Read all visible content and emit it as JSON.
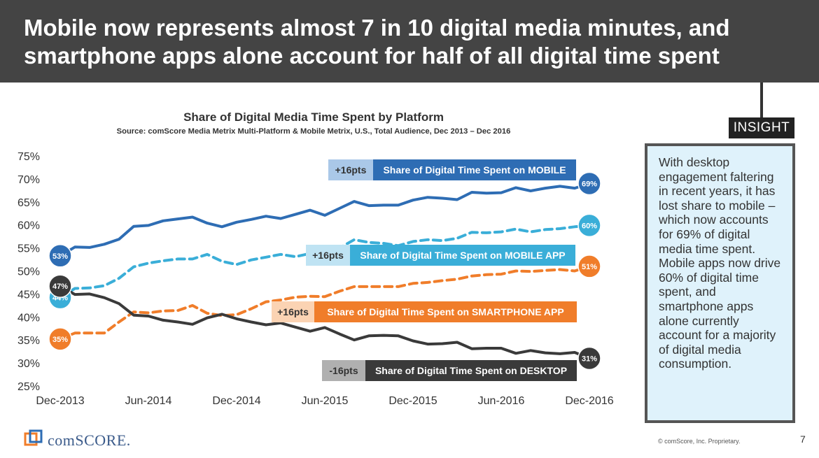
{
  "slide": {
    "title": "Mobile now represents almost 7 in 10 digital media minutes, and smartphone apps alone account for half of all digital time spent",
    "insight_label": "INSIGHT",
    "insight_text": "With desktop engagement faltering in recent years, it has lost share to mobile – which now accounts for 69% of digital media time spent. Mobile apps now drive 60% of digital time spent, and smartphone apps alone currently account for a majority of digital media consumption.",
    "logo_text": "comSCORE.",
    "copyright": "© comScore, Inc. Proprietary.",
    "page_number": "7"
  },
  "chart_data": {
    "type": "line",
    "title": "Share of Digital Media Time Spent by Platform",
    "subtitle": "Source: comScore Media Metrix Multi-Platform & Mobile Metrix, U.S., Total Audience, Dec 2013 – Dec 2016",
    "ylim": [
      25,
      75
    ],
    "y_ticks": [
      "75%",
      "70%",
      "65%",
      "60%",
      "55%",
      "50%",
      "45%",
      "40%",
      "35%",
      "30%",
      "25%"
    ],
    "x_ticks": [
      "Dec-2013",
      "Jun-2014",
      "Dec-2014",
      "Jun-2015",
      "Dec-2015",
      "Jun-2016",
      "Dec-2016"
    ],
    "grid": false,
    "series": [
      {
        "name": "Share of Digital Time Spent on MOBILE",
        "change": "+16pts",
        "color": "#2e6db4",
        "change_color": "#aac8e8",
        "dashed": false,
        "start_label": "53%",
        "end_label": "69%",
        "values": [
          53.3,
          55.2,
          55.1,
          55.8,
          56.9,
          59.7,
          59.9,
          60.9,
          61.3,
          61.7,
          60.4,
          59.6,
          60.6,
          61.2,
          61.9,
          61.4,
          62.3,
          63.2,
          62.1,
          63.6,
          65.1,
          64.2,
          64.3,
          64.3,
          65.4,
          66.0,
          65.8,
          65.5,
          67.1,
          66.9,
          67.0,
          68.1,
          67.4,
          68.0,
          68.4,
          68.0,
          69.0
        ]
      },
      {
        "name": "Share of Digital Time Spent on MOBILE APP",
        "change": "+16pts",
        "color": "#3aaed8",
        "change_color": "#bfe3f3",
        "dashed": true,
        "start_label": "44%",
        "end_label": "60%",
        "values": [
          44.2,
          46.2,
          46.3,
          46.8,
          48.4,
          50.9,
          51.7,
          52.2,
          52.6,
          52.6,
          53.6,
          52.1,
          51.4,
          52.4,
          53.0,
          53.6,
          53.1,
          53.8,
          54.1,
          55.0,
          56.8,
          56.2,
          56.0,
          55.5,
          56.4,
          56.8,
          56.6,
          57.1,
          58.4,
          58.3,
          58.5,
          59.1,
          58.5,
          59.0,
          59.2,
          59.6,
          59.9
        ]
      },
      {
        "name": "Share of Digital Time Spent on SMARTPHONE APP",
        "change": "+16pts",
        "color": "#f07d2a",
        "change_color": "#fbd3b3",
        "dashed": true,
        "start_label": "35%",
        "end_label": "51%",
        "values": [
          35.2,
          36.5,
          36.5,
          36.5,
          38.9,
          41.1,
          40.9,
          41.3,
          41.4,
          42.5,
          40.8,
          40.3,
          40.5,
          41.8,
          43.3,
          43.7,
          44.3,
          44.5,
          44.4,
          45.6,
          46.6,
          46.6,
          46.6,
          46.6,
          47.3,
          47.5,
          47.9,
          48.2,
          48.9,
          49.2,
          49.3,
          50.0,
          49.9,
          50.1,
          50.3,
          50.0,
          51.0
        ]
      },
      {
        "name": "Share of Digital Time Spent on DESKTOP",
        "change": "-16pts",
        "color": "#3a3a3a",
        "change_color": "#b0b0b0",
        "dashed": false,
        "start_label": "47%",
        "end_label": "31%",
        "values": [
          46.7,
          44.9,
          45.0,
          44.2,
          42.9,
          40.4,
          40.2,
          39.3,
          38.9,
          38.4,
          39.8,
          40.6,
          39.6,
          38.9,
          38.3,
          38.7,
          37.8,
          36.9,
          37.7,
          36.3,
          35.0,
          35.9,
          36.0,
          35.9,
          34.8,
          34.1,
          34.2,
          34.5,
          33.1,
          33.2,
          33.2,
          32.1,
          32.7,
          32.2,
          32.0,
          32.3,
          31.0
        ]
      }
    ]
  }
}
